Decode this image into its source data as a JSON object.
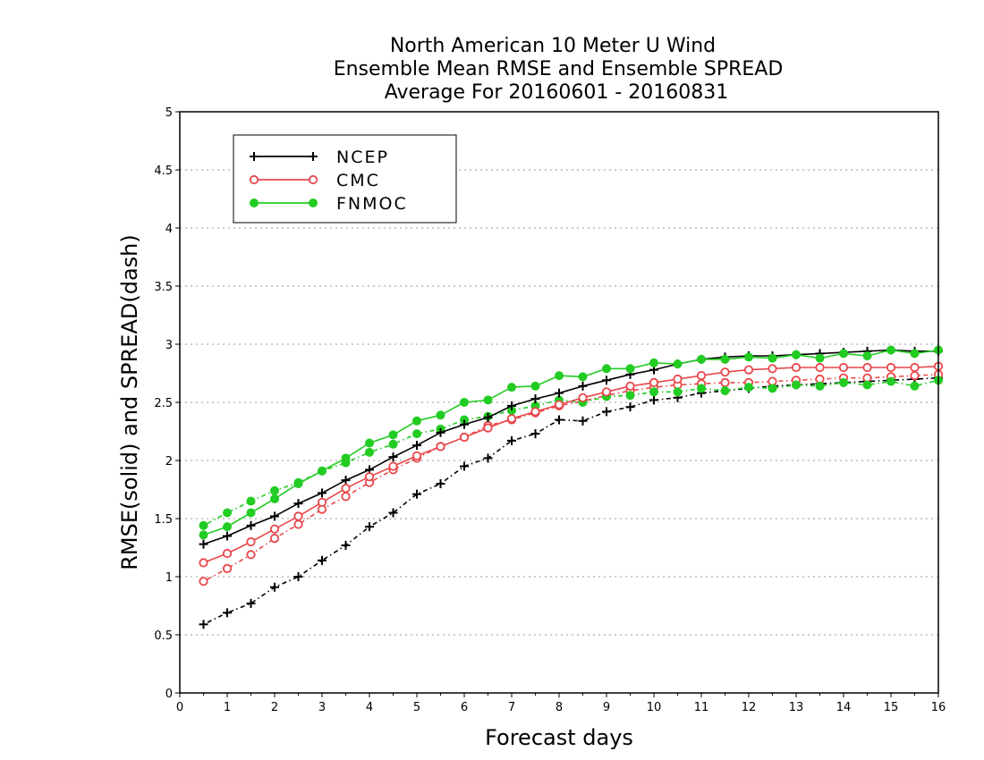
{
  "chart_data": {
    "type": "line",
    "title": [
      "North American 10 Meter U Wind",
      "Ensemble Mean RMSE and Ensemble SPREAD",
      "Average For 20160601 - 20160831"
    ],
    "xlabel": "Forecast days",
    "ylabel": "RMSE(solid) and SPREAD(dash)",
    "xlim": [
      0,
      16
    ],
    "ylim": [
      0,
      5
    ],
    "xticks": [
      "0",
      "1",
      "2",
      "3",
      "4",
      "5",
      "6",
      "7",
      "8",
      "9",
      "10",
      "11",
      "12",
      "13",
      "14",
      "15",
      "16"
    ],
    "yticks": [
      "0",
      "0.5",
      "1",
      "1.5",
      "2",
      "2.5",
      "3",
      "3.5",
      "4",
      "4.5",
      "5"
    ],
    "grid": "horizontal dotted",
    "legend_position": "top-left",
    "x": [
      0.5,
      1,
      1.5,
      2,
      2.5,
      3,
      3.5,
      4,
      4.5,
      5,
      5.5,
      6,
      6.5,
      7,
      7.5,
      8,
      8.5,
      9,
      9.5,
      10,
      10.5,
      11,
      11.5,
      12,
      12.5,
      13,
      13.5,
      14,
      14.5,
      15,
      15.5,
      16
    ],
    "series": [
      {
        "name": "NCEP",
        "color": "#000000",
        "marker": "plus",
        "line": "solid",
        "values": [
          1.28,
          1.35,
          1.44,
          1.52,
          1.63,
          1.72,
          1.83,
          1.92,
          2.03,
          2.13,
          2.24,
          2.31,
          2.37,
          2.47,
          2.53,
          2.58,
          2.64,
          2.69,
          2.74,
          2.78,
          2.83,
          2.87,
          2.89,
          2.9,
          2.9,
          2.91,
          2.92,
          2.93,
          2.94,
          2.95,
          2.94,
          2.94
        ]
      },
      {
        "name": "NCEP",
        "color": "#000000",
        "marker": "plus",
        "line": "dash",
        "values": [
          0.59,
          0.69,
          0.77,
          0.91,
          1.0,
          1.14,
          1.27,
          1.43,
          1.55,
          1.71,
          1.8,
          1.95,
          2.02,
          2.17,
          2.23,
          2.35,
          2.34,
          2.42,
          2.46,
          2.52,
          2.54,
          2.58,
          2.6,
          2.62,
          2.64,
          2.65,
          2.66,
          2.67,
          2.68,
          2.69,
          2.7,
          2.71
        ]
      },
      {
        "name": "CMC",
        "color": "#e8464a",
        "marker": "open-circle",
        "line": "solid",
        "values": [
          1.12,
          1.2,
          1.3,
          1.41,
          1.52,
          1.64,
          1.76,
          1.86,
          1.95,
          2.04,
          2.12,
          2.2,
          2.28,
          2.36,
          2.42,
          2.48,
          2.54,
          2.59,
          2.64,
          2.67,
          2.7,
          2.73,
          2.76,
          2.78,
          2.79,
          2.8,
          2.8,
          2.8,
          2.8,
          2.8,
          2.8,
          2.81
        ]
      },
      {
        "name": "CMC",
        "color": "#e8464a",
        "marker": "open-circle",
        "line": "dash",
        "values": [
          0.96,
          1.07,
          1.19,
          1.33,
          1.45,
          1.58,
          1.69,
          1.81,
          1.92,
          2.02,
          2.12,
          2.2,
          2.3,
          2.35,
          2.41,
          2.47,
          2.51,
          2.56,
          2.6,
          2.63,
          2.65,
          2.66,
          2.67,
          2.67,
          2.68,
          2.69,
          2.7,
          2.71,
          2.71,
          2.72,
          2.73,
          2.74
        ]
      },
      {
        "name": "FNMOC",
        "color": "#22cc22",
        "marker": "filled-circle",
        "line": "solid",
        "values": [
          1.36,
          1.43,
          1.55,
          1.67,
          1.8,
          1.91,
          2.02,
          2.15,
          2.22,
          2.34,
          2.39,
          2.5,
          2.52,
          2.63,
          2.64,
          2.73,
          2.72,
          2.79,
          2.79,
          2.84,
          2.83,
          2.87,
          2.87,
          2.89,
          2.88,
          2.91,
          2.88,
          2.92,
          2.9,
          2.95,
          2.92,
          2.95
        ]
      },
      {
        "name": "FNMOC",
        "color": "#22cc22",
        "marker": "filled-circle",
        "line": "dash",
        "values": [
          1.44,
          1.55,
          1.65,
          1.74,
          1.81,
          1.91,
          1.98,
          2.07,
          2.14,
          2.23,
          2.27,
          2.35,
          2.38,
          2.43,
          2.47,
          2.52,
          2.5,
          2.55,
          2.56,
          2.59,
          2.59,
          2.62,
          2.6,
          2.63,
          2.62,
          2.65,
          2.64,
          2.67,
          2.65,
          2.68,
          2.64,
          2.69
        ]
      }
    ]
  }
}
